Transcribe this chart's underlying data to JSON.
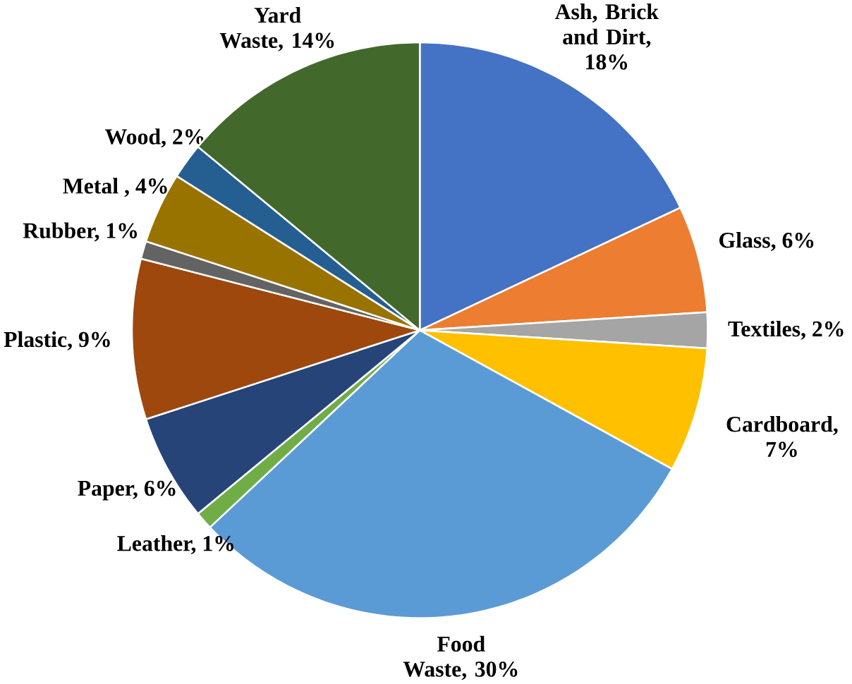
{
  "chart_data": {
    "type": "pie",
    "categories": [
      "Ash, Brick and Dirt, 18%",
      "Glass, 6%",
      "Textiles, 2%",
      "Cardboard, 7%",
      "Food Waste, 30%",
      "Leather, 1%",
      "Paper, 6%",
      "Plastic, 9%",
      "Rubber, 1%",
      "Metal , 4%",
      "Wood, 2%",
      "Yard Waste, 14%"
    ],
    "values": [
      18,
      6,
      2,
      7,
      30,
      1,
      6,
      9,
      1,
      4,
      2,
      14
    ],
    "colors": [
      "#4472c4",
      "#ed7d31",
      "#a5a5a5",
      "#ffc000",
      "#5b9bd5",
      "#70ad47",
      "#264478",
      "#9e480e",
      "#636363",
      "#997300",
      "#255e91",
      "#43682b"
    ]
  }
}
